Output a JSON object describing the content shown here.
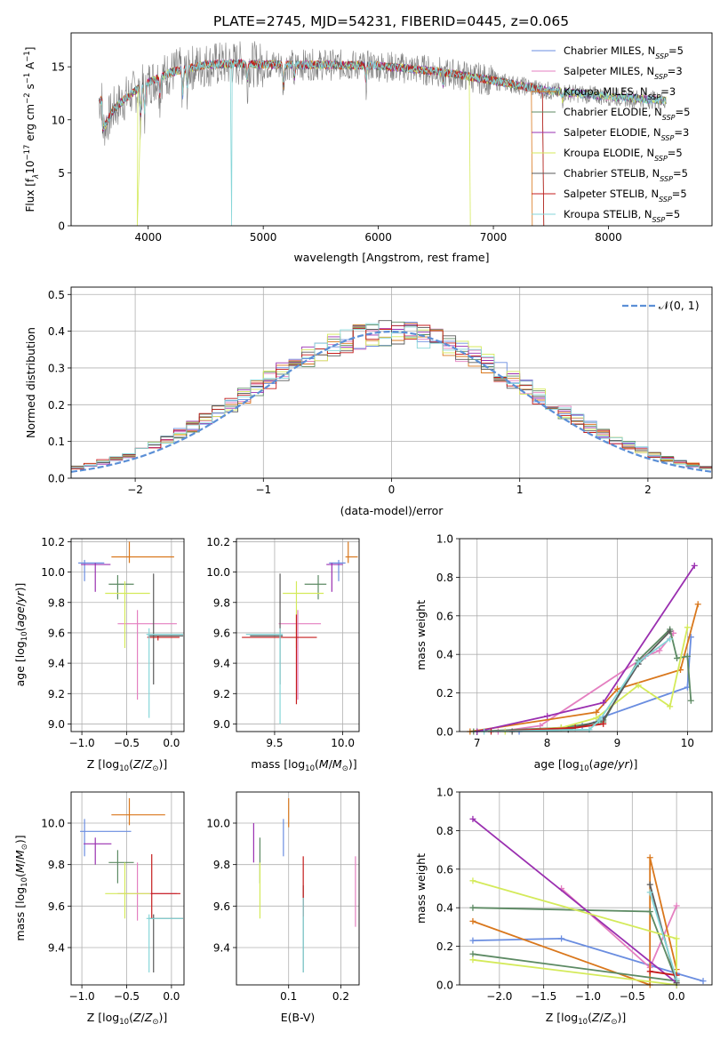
{
  "page_title": "PLATE=2745, MJD=54231, FIBERID=0445, z=0.065",
  "colors": {
    "models": [
      "#6a8de0",
      "#e47fc0",
      "#d9771c",
      "#5c8a63",
      "#9a2fb0",
      "#d4ea5a",
      "#5a5a5a",
      "#c51c1c",
      "#86d6d8"
    ],
    "data": "#7f7f7f",
    "normal": "#5b8fd6"
  },
  "chart_data": [
    {
      "id": "spectrum",
      "type": "line",
      "title": "PLATE=2745, MJD=54231, FIBERID=0445, z=0.065",
      "xlabel": "wavelength [Angstrom, rest frame]",
      "ylabel": "Flux [f_λ 10^-17 erg cm^-2 s^-1 A^-1]",
      "ylabel_parts": [
        "Flux [f",
        "λ",
        "10",
        "−17",
        " erg cm",
        "−2",
        " s",
        "−1",
        " A",
        "−1",
        "]"
      ],
      "xlim": [
        3330,
        8900
      ],
      "ylim": [
        0,
        18.2
      ],
      "xticks": [
        4000,
        5000,
        6000,
        7000,
        8000
      ],
      "yticks": [
        0,
        5,
        10,
        15
      ],
      "grid": false,
      "legend_position": "right",
      "legend": [
        [
          "Chabrier MILES, N",
          "SSP",
          "=5"
        ],
        [
          "Salpeter MILES, N",
          "SSP",
          "=3"
        ],
        [
          "Kroupa MILES, N",
          "SSP",
          "=3"
        ],
        [
          "Chabrier ELODIE, N",
          "SSP",
          "=5"
        ],
        [
          "Salpeter ELODIE, N",
          "SSP",
          "=3"
        ],
        [
          "Kroupa ELODIE, N",
          "SSP",
          "=5"
        ],
        [
          "Chabrier STELIB, N",
          "SSP",
          "=5"
        ],
        [
          "Salpeter STELIB, N",
          "SSP",
          "=5"
        ],
        [
          "Kroupa STELIB, N",
          "SSP",
          "=5"
        ]
      ],
      "continuum": [
        [
          3600,
          9
        ],
        [
          3700,
          11
        ],
        [
          3800,
          12
        ],
        [
          3900,
          12.8
        ],
        [
          4000,
          13.5
        ],
        [
          4200,
          14.5
        ],
        [
          4500,
          15.2
        ],
        [
          4800,
          15.3
        ],
        [
          5000,
          15.2
        ],
        [
          5500,
          15.2
        ],
        [
          6000,
          15.1
        ],
        [
          6500,
          14.6
        ],
        [
          7000,
          13.7
        ],
        [
          7500,
          12.7
        ],
        [
          8000,
          12.2
        ],
        [
          8500,
          11.8
        ]
      ]
    },
    {
      "id": "residuals",
      "type": "histogram",
      "xlabel": "(data-model)/error",
      "ylabel": "Normed distribution",
      "xlim": [
        -2.5,
        2.5
      ],
      "ylim": [
        0,
        0.52
      ],
      "xticks": [
        -2,
        -1,
        0,
        1,
        2
      ],
      "yticks": [
        0.0,
        0.1,
        0.2,
        0.3,
        0.4,
        0.5
      ],
      "grid": true,
      "legend": [
        "𝒩(0, 1)"
      ],
      "legend_position": "top-right"
    },
    {
      "id": "age-vs-Z",
      "type": "errorbar",
      "xlabel": "Z [log10(Z/Z⊙)]",
      "ylabel": "age [log10(age/yr)]",
      "xlim": [
        -1.12,
        0.14
      ],
      "ylim": [
        8.95,
        10.22
      ],
      "xticks": [
        -1.0,
        -0.5,
        0.0
      ],
      "yticks": [
        9.0,
        9.2,
        9.4,
        9.6,
        9.8,
        10.0,
        10.2
      ],
      "grid": true,
      "points": [
        {
          "x": -0.97,
          "y": 10.06,
          "xerr": [
            0.07,
            0.22
          ],
          "yerr": [
            0.12,
            0.02
          ]
        },
        {
          "x": -0.38,
          "y": 9.66,
          "xerr": [
            0.22,
            0.44
          ],
          "yerr": [
            0.5,
            0.09
          ]
        },
        {
          "x": -0.47,
          "y": 10.1,
          "xerr": [
            0.2,
            0.5
          ],
          "yerr": [
            0.04,
            0.1
          ]
        },
        {
          "x": -0.6,
          "y": 9.92,
          "xerr": [
            0.1,
            0.18
          ],
          "yerr": [
            0.1,
            0.06
          ]
        },
        {
          "x": -0.85,
          "y": 10.05,
          "xerr": [
            0.16,
            0.17
          ],
          "yerr": [
            0.18,
            0.01
          ]
        },
        {
          "x": -0.52,
          "y": 9.86,
          "xerr": [
            0.22,
            0.28
          ],
          "yerr": [
            0.36,
            0.08
          ]
        },
        {
          "x": -0.2,
          "y": 9.58,
          "xerr": [
            0.06,
            0.33
          ],
          "yerr": [
            0.32,
            0.41
          ]
        },
        {
          "x": -0.15,
          "y": 9.57,
          "xerr": [
            0.12,
            0.24
          ],
          "yerr": [
            0.02,
            0.01
          ]
        },
        {
          "x": -0.25,
          "y": 9.59,
          "xerr": [
            0.03,
            0.38
          ],
          "yerr": [
            0.55,
            0.04
          ]
        }
      ]
    },
    {
      "id": "age-vs-mass",
      "type": "errorbar",
      "xlabel": "mass [log10(M/M⊙)]",
      "ylabel": "",
      "xlim": [
        9.22,
        10.12
      ],
      "ylim": [
        8.95,
        10.22
      ],
      "xticks": [
        9.5,
        10.0
      ],
      "yticks": [
        9.0,
        9.2,
        9.4,
        9.6,
        9.8,
        10.0,
        10.2
      ],
      "grid": true,
      "points": [
        {
          "x": 9.97,
          "y": 10.06,
          "xerr": [
            0.07,
            0.05
          ],
          "yerr": [
            0.12,
            0.02
          ]
        },
        {
          "x": 9.67,
          "y": 9.66,
          "xerr": [
            0.14,
            0.17
          ],
          "yerr": [
            0.5,
            0.09
          ]
        },
        {
          "x": 10.04,
          "y": 10.1,
          "xerr": [
            0.02,
            0.07
          ],
          "yerr": [
            0.04,
            0.1
          ]
        },
        {
          "x": 9.82,
          "y": 9.92,
          "xerr": [
            0.1,
            0.06
          ],
          "yerr": [
            0.1,
            0.06
          ]
        },
        {
          "x": 9.92,
          "y": 10.05,
          "xerr": [
            0.04,
            0.08
          ],
          "yerr": [
            0.18,
            0.01
          ]
        },
        {
          "x": 9.66,
          "y": 9.86,
          "xerr": [
            0.1,
            0.2
          ],
          "yerr": [
            0.36,
            0.08
          ]
        },
        {
          "x": 9.54,
          "y": 9.58,
          "xerr": [
            0.22,
            0.02
          ],
          "yerr": [
            0.32,
            0.41
          ]
        },
        {
          "x": 9.66,
          "y": 9.57,
          "xerr": [
            0.4,
            0.15
          ],
          "yerr": [
            0.44,
            0.15
          ]
        },
        {
          "x": 9.54,
          "y": 9.59,
          "xerr": [
            0.25,
            0.02
          ],
          "yerr": [
            0.59,
            0.04
          ]
        }
      ]
    },
    {
      "id": "weight-vs-age",
      "type": "line",
      "xlabel": "age [log10(age/yr)]",
      "ylabel": "mass weight",
      "xlim": [
        6.75,
        10.35
      ],
      "ylim": [
        0.0,
        1.0
      ],
      "xticks": [
        7,
        8,
        9,
        10
      ],
      "yticks": [
        0.0,
        0.2,
        0.4,
        0.6,
        0.8,
        1.0
      ],
      "grid": true,
      "series": [
        {
          "points": [
            [
              7.6,
              0.0
            ],
            [
              8.5,
              0.03
            ],
            [
              8.7,
              0.05
            ],
            [
              8.75,
              0.07
            ],
            [
              10.0,
              0.23
            ],
            [
              10.05,
              0.49
            ]
          ]
        },
        {
          "points": [
            [
              7.3,
              0.0
            ],
            [
              7.9,
              0.03
            ],
            [
              9.4,
              0.39
            ],
            [
              9.6,
              0.42
            ],
            [
              9.8,
              0.51
            ]
          ]
        },
        {
          "points": [
            [
              6.9,
              0.0
            ],
            [
              8.7,
              0.1
            ],
            [
              9.0,
              0.22
            ],
            [
              9.9,
              0.32
            ],
            [
              10.15,
              0.66
            ]
          ]
        },
        {
          "points": [
            [
              6.95,
              0.0
            ],
            [
              8.2,
              0.02
            ],
            [
              8.8,
              0.05
            ],
            [
              9.3,
              0.37
            ],
            [
              9.75,
              0.53
            ],
            [
              9.85,
              0.38
            ],
            [
              10.0,
              0.39
            ],
            [
              10.05,
              0.16
            ]
          ]
        },
        {
          "points": [
            [
              7.0,
              0.0
            ],
            [
              8.0,
              0.08
            ],
            [
              8.8,
              0.15
            ],
            [
              10.1,
              0.86
            ]
          ]
        },
        {
          "points": [
            [
              7.4,
              0.0
            ],
            [
              8.2,
              0.02
            ],
            [
              8.7,
              0.07
            ],
            [
              9.3,
              0.24
            ],
            [
              9.75,
              0.13
            ],
            [
              10.0,
              0.54
            ]
          ]
        },
        {
          "points": [
            [
              7.5,
              0.0
            ],
            [
              8.3,
              0.01
            ],
            [
              8.8,
              0.06
            ],
            [
              9.3,
              0.35
            ],
            [
              9.75,
              0.52
            ]
          ]
        },
        {
          "points": [
            [
              7.2,
              0.0
            ],
            [
              8.4,
              0.02
            ],
            [
              8.8,
              0.04
            ]
          ]
        },
        {
          "points": [
            [
              7.1,
              0.0
            ],
            [
              8.6,
              0.01
            ],
            [
              8.75,
              0.06
            ],
            [
              9.3,
              0.36
            ],
            [
              9.75,
              0.48
            ]
          ]
        }
      ]
    },
    {
      "id": "mass-vs-Z",
      "type": "errorbar",
      "xlabel": "Z [log10(Z/Z⊙)]",
      "ylabel": "mass [log10(M/M⊙)]",
      "xlim": [
        -1.12,
        0.14
      ],
      "ylim": [
        9.22,
        10.15
      ],
      "xticks": [
        -1.0,
        -0.5,
        0.0
      ],
      "yticks": [
        9.4,
        9.6,
        9.8,
        10.0
      ],
      "grid": true,
      "points": [
        {
          "x": -0.97,
          "y": 9.96,
          "xerr": [
            0.05,
            0.52
          ],
          "yerr": [
            0.12,
            0.06
          ]
        },
        {
          "x": -0.38,
          "y": 9.66,
          "xerr": [
            0.22,
            0.44
          ],
          "yerr": [
            0.13,
            0.15
          ]
        },
        {
          "x": -0.47,
          "y": 10.04,
          "xerr": [
            0.2,
            0.4
          ],
          "yerr": [
            0.05,
            0.08
          ]
        },
        {
          "x": -0.6,
          "y": 9.81,
          "xerr": [
            0.1,
            0.18
          ],
          "yerr": [
            0.1,
            0.06
          ]
        },
        {
          "x": -0.85,
          "y": 9.9,
          "xerr": [
            0.13,
            0.18
          ],
          "yerr": [
            0.1,
            0.03
          ]
        },
        {
          "x": -0.52,
          "y": 9.66,
          "xerr": [
            0.22,
            0.28
          ],
          "yerr": [
            0.12,
            0.15
          ]
        },
        {
          "x": -0.2,
          "y": 9.54,
          "xerr": [
            0.06,
            0.33
          ],
          "yerr": [
            0.26,
            0.02
          ]
        },
        {
          "x": -0.22,
          "y": 9.66,
          "xerr": [
            0.01,
            0.32
          ],
          "yerr": [
            0.12,
            0.19
          ]
        },
        {
          "x": -0.25,
          "y": 9.54,
          "xerr": [
            0.03,
            0.38
          ],
          "yerr": [
            0.26,
            0.02
          ]
        }
      ]
    },
    {
      "id": "mass-vs-ebv",
      "type": "errorbar",
      "xlabel": "E(B-V)",
      "ylabel": "",
      "xlim": [
        0.0,
        0.235
      ],
      "ylim": [
        9.22,
        10.15
      ],
      "xticks": [
        0.1,
        0.2
      ],
      "yticks": [
        9.4,
        9.6,
        9.8,
        10.0
      ],
      "grid": true,
      "points": [
        {
          "x": 0.09,
          "y": 9.96,
          "xerr": [
            0,
            0
          ],
          "yerr": [
            0.12,
            0.06
          ]
        },
        {
          "x": 0.228,
          "y": 9.66,
          "xerr": [
            0,
            0
          ],
          "yerr": [
            0.16,
            0.18
          ]
        },
        {
          "x": 0.1,
          "y": 10.04,
          "xerr": [
            0,
            0
          ],
          "yerr": [
            0.06,
            0.08
          ]
        },
        {
          "x": 0.045,
          "y": 9.81,
          "xerr": [
            0,
            0
          ],
          "yerr": [
            0.1,
            0.12
          ]
        },
        {
          "x": 0.033,
          "y": 9.9,
          "xerr": [
            0,
            0
          ],
          "yerr": [
            0.09,
            0.1
          ]
        },
        {
          "x": 0.045,
          "y": 9.66,
          "xerr": [
            0,
            0
          ],
          "yerr": [
            0.12,
            0.15
          ]
        },
        {
          "x": 0.128,
          "y": 9.54,
          "xerr": [
            0,
            0
          ],
          "yerr": [
            0.26,
            0.16
          ]
        },
        {
          "x": 0.128,
          "y": 9.66,
          "xerr": [
            0,
            0
          ],
          "yerr": [
            0.11,
            0.18
          ]
        },
        {
          "x": 0.128,
          "y": 9.54,
          "xerr": [
            0,
            0
          ],
          "yerr": [
            0.26,
            0.1
          ]
        }
      ]
    },
    {
      "id": "weight-vs-Z",
      "type": "line",
      "xlabel": "Z [log10(Z/Z⊙)]",
      "ylabel": "mass weight",
      "xlim": [
        -2.45,
        0.4
      ],
      "ylim": [
        0.0,
        1.0
      ],
      "xticks": [
        -2.0,
        -1.5,
        -1.0,
        -0.5,
        0.0
      ],
      "yticks": [
        0.0,
        0.2,
        0.4,
        0.6,
        0.8,
        1.0
      ],
      "grid": true,
      "series": [
        {
          "points": [
            [
              -2.3,
              0.23
            ],
            [
              -1.3,
              0.24
            ],
            [
              0.0,
              0.06
            ],
            [
              0.3,
              0.02
            ]
          ]
        },
        {
          "points": [
            [
              -1.3,
              0.5
            ],
            [
              -0.3,
              0.09
            ],
            [
              0.0,
              0.41
            ]
          ]
        },
        {
          "points": [
            [
              -2.3,
              0.33
            ],
            [
              -0.3,
              0.0
            ],
            [
              -0.3,
              0.66
            ],
            [
              0.0,
              0.08
            ]
          ]
        },
        {
          "points": [
            [
              -2.3,
              0.4
            ],
            [
              -0.3,
              0.38
            ],
            [
              0.0,
              0.02
            ],
            [
              -2.3,
              0.16
            ]
          ]
        },
        {
          "points": [
            [
              -2.3,
              0.86
            ],
            [
              0.0,
              0.01
            ]
          ]
        },
        {
          "points": [
            [
              -2.3,
              0.13
            ],
            [
              0.0,
              0.0
            ],
            [
              0.0,
              0.24
            ],
            [
              -2.3,
              0.54
            ]
          ]
        },
        {
          "points": [
            [
              -0.3,
              0.52
            ],
            [
              0.0,
              0.01
            ]
          ]
        },
        {
          "points": [
            [
              -0.3,
              0.07
            ],
            [
              0.0,
              0.05
            ]
          ]
        },
        {
          "points": [
            [
              -0.3,
              0.48
            ],
            [
              0.0,
              0.03
            ]
          ]
        }
      ]
    }
  ]
}
